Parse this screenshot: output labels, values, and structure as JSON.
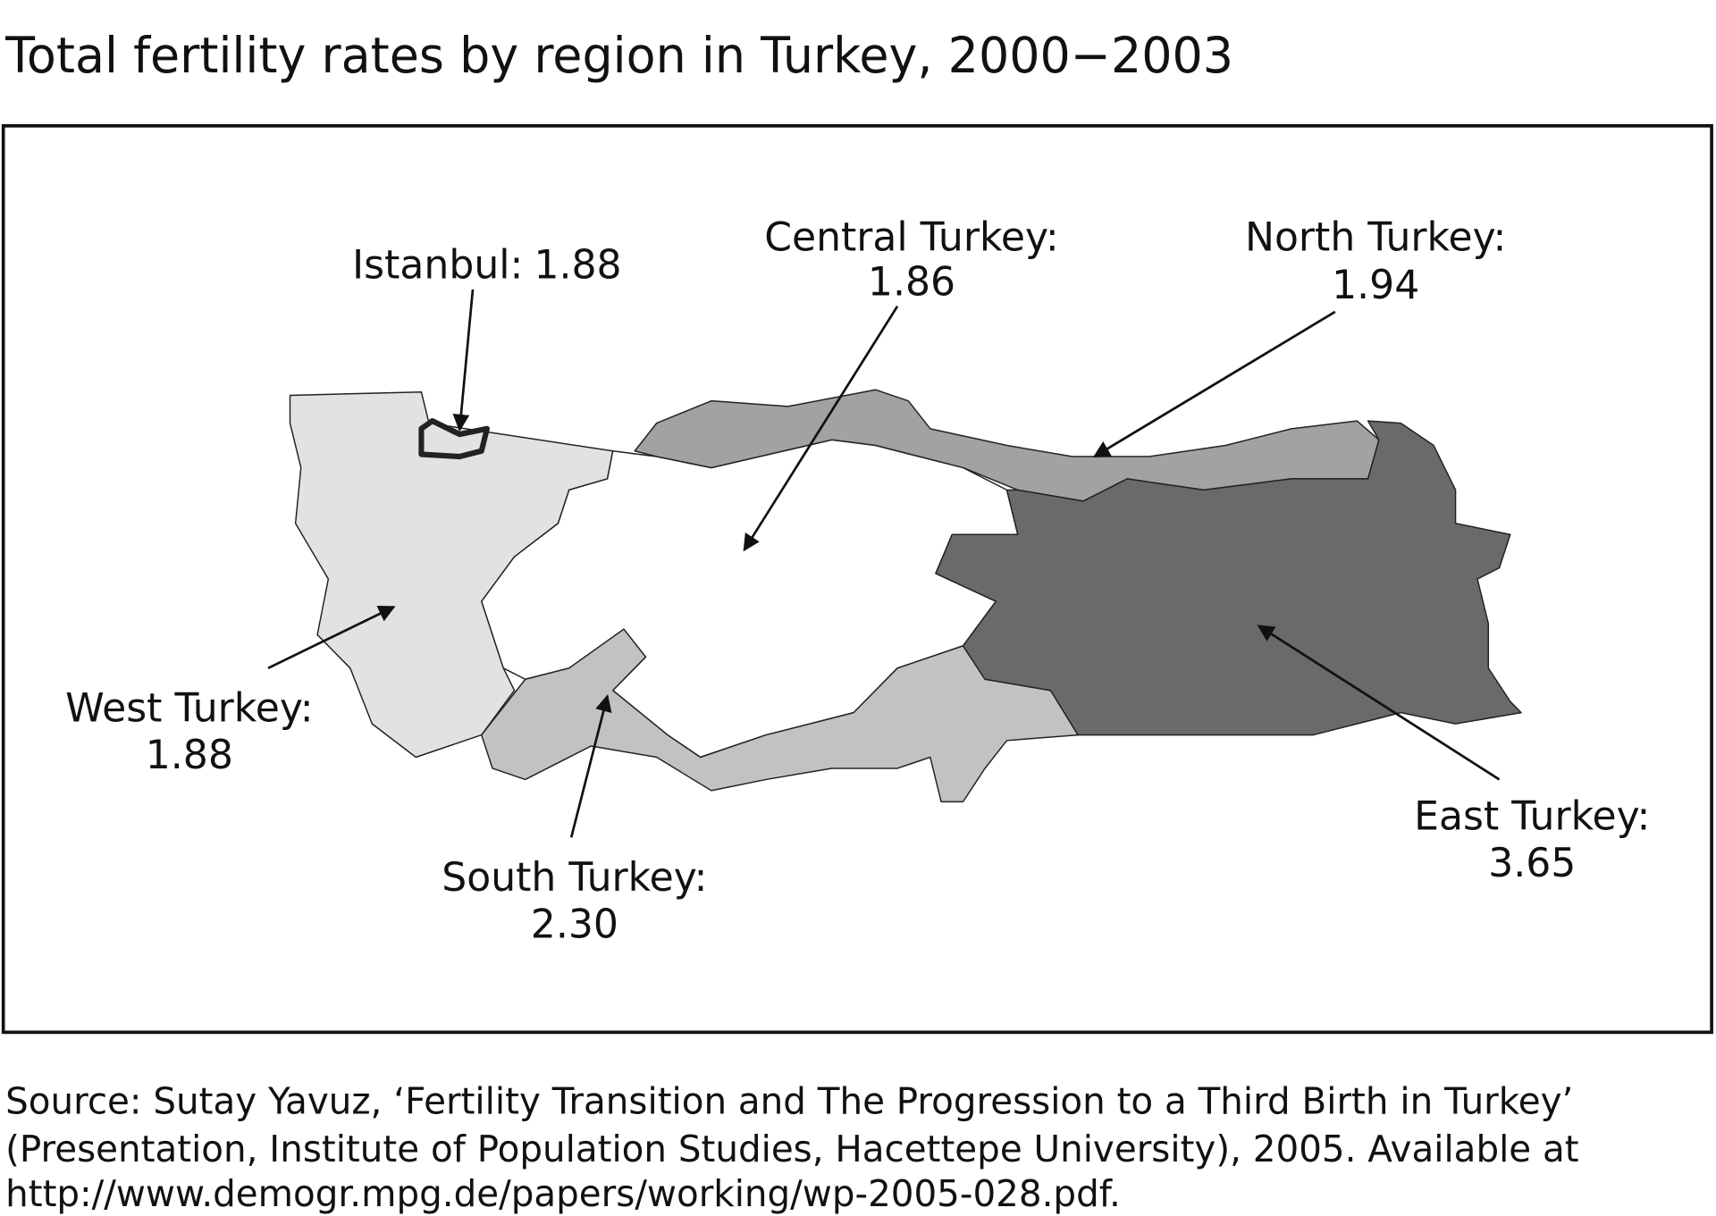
{
  "title": "Total fertility rates by region in Turkey, 2000−2003",
  "regions": [
    {
      "label": "Istanbul:",
      "value": "1.88"
    },
    {
      "label": "Central Turkey:",
      "value": "1.86"
    },
    {
      "label": "North Turkey:",
      "value": "1.94"
    },
    {
      "label": "West Turkey:",
      "value": "1.88"
    },
    {
      "label": "South Turkey:",
      "value": "2.30"
    },
    {
      "label": "East Turkey:",
      "value": "3.65"
    }
  ],
  "source": [
    "Source: Sutay Yavuz, ‘Fertility Transition and The Progression to a Third Birth in Turkey’",
    "(Presentation, Institute of Population Studies, Hacettepe University), 2005. Available at",
    "http://www.demogr.mpg.de/papers/working/wp-2005-028.pdf."
  ]
}
